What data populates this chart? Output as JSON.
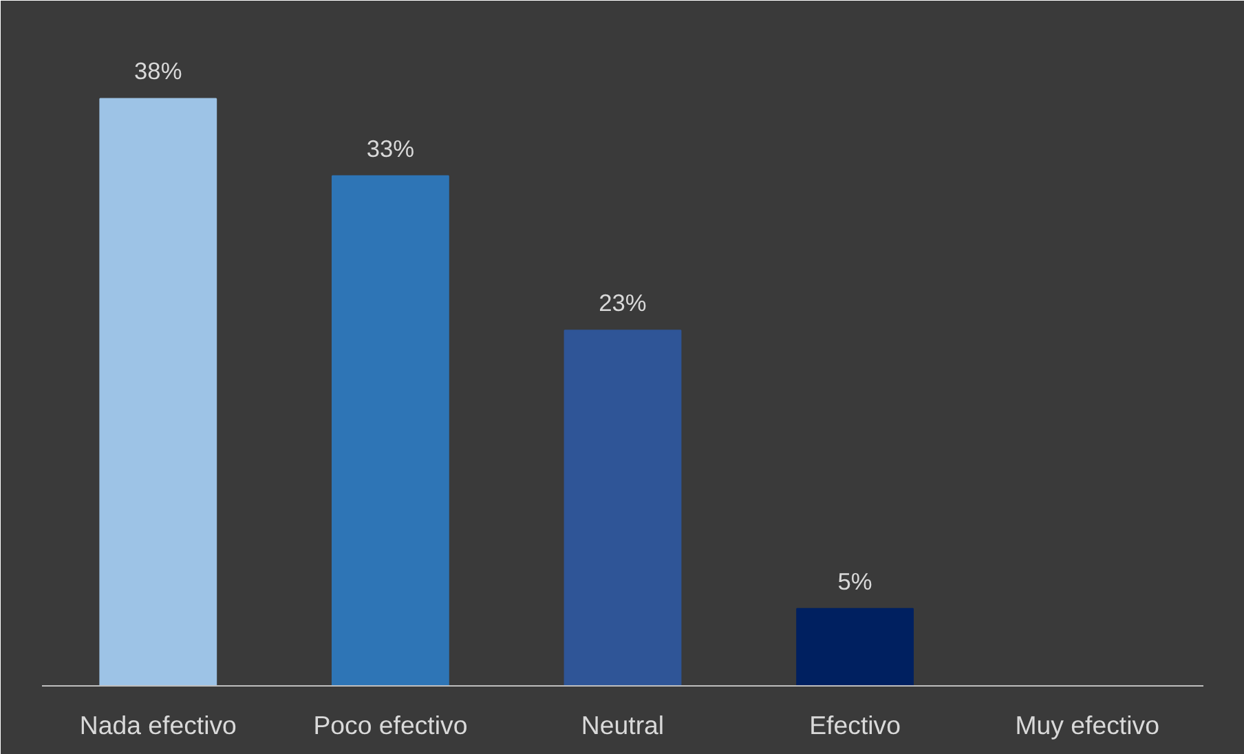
{
  "chart_data": {
    "type": "bar",
    "categories": [
      "Nada efectivo",
      "Poco efectivo",
      "Neutral",
      "Efectivo",
      "Muy efectivo"
    ],
    "values": [
      38,
      33,
      23,
      5,
      0
    ],
    "colors": [
      "#9dc3e6",
      "#2e75b6",
      "#2f5597",
      "#002060",
      "#1f3864"
    ],
    "value_labels": [
      "38%",
      "33%",
      "23%",
      "5%",
      null
    ],
    "grid": false
  }
}
